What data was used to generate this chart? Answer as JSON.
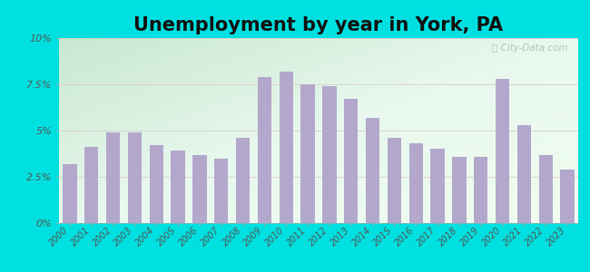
{
  "title": "Unemployment by year in York, PA",
  "years": [
    "2000",
    "2001",
    "2002",
    "2003",
    "2004",
    "2005",
    "2006",
    "2007",
    "2008",
    "2009",
    "2010",
    "2011",
    "2012",
    "2013",
    "2014",
    "2015",
    "2016",
    "2017",
    "2018",
    "2019",
    "2020",
    "2021",
    "2022",
    "2023"
  ],
  "values": [
    3.2,
    4.1,
    4.9,
    4.9,
    4.2,
    3.9,
    3.7,
    3.5,
    4.6,
    7.9,
    8.2,
    7.5,
    7.4,
    6.7,
    5.7,
    4.6,
    4.3,
    4.0,
    3.6,
    3.6,
    7.8,
    5.3,
    3.7,
    2.9
  ],
  "bar_color": "#b3a8cc",
  "bg_outer": "#00e0e0",
  "ylim": [
    0,
    10
  ],
  "yticks": [
    0,
    2.5,
    5.0,
    7.5,
    10.0
  ],
  "ytick_labels": [
    "0%",
    "2.5%",
    "5%",
    "7.5%",
    "10%"
  ],
  "title_fontsize": 15,
  "watermark": "City-Data.com",
  "grad_top_left": "#c8e8d0",
  "grad_bottom_right": "#f0fdf0"
}
